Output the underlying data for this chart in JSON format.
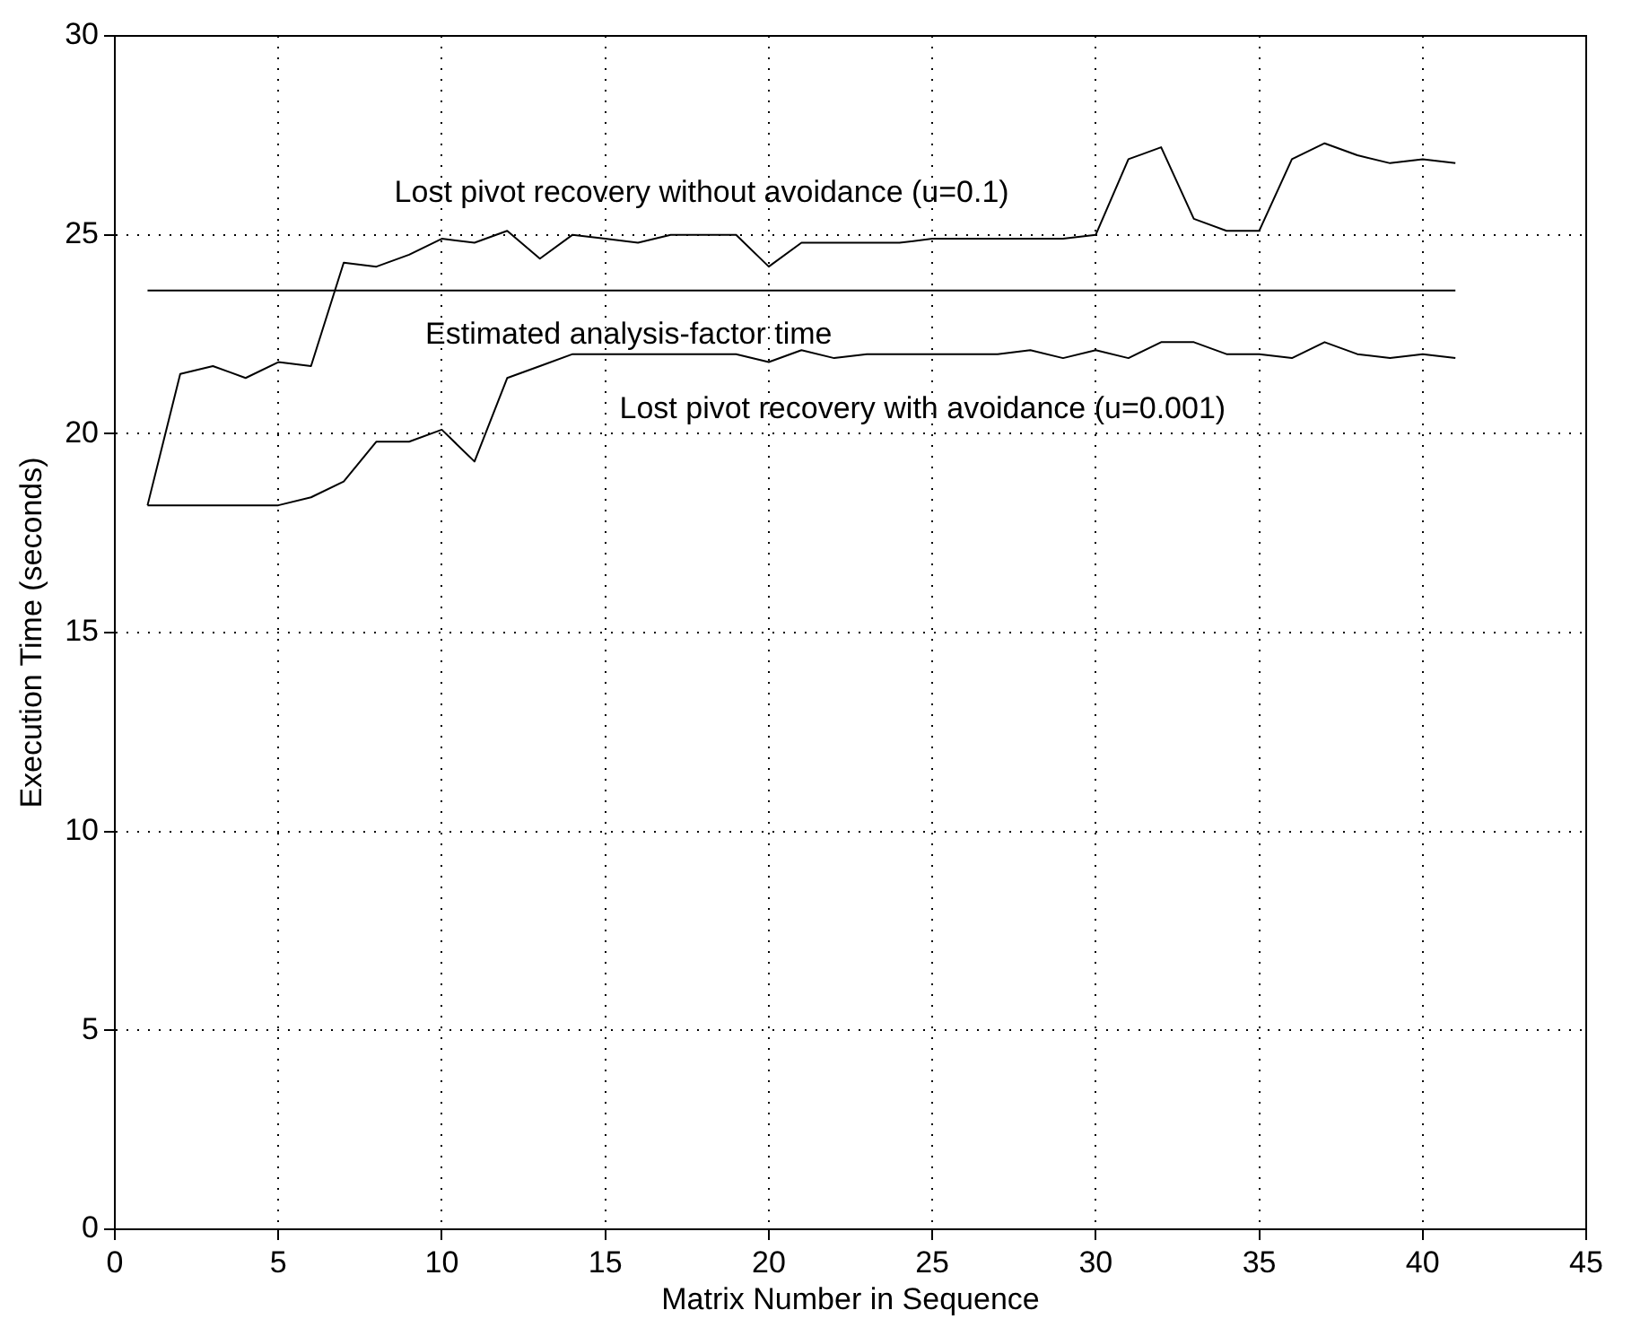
{
  "chart_data": {
    "type": "line",
    "xlabel": "Matrix Number in Sequence",
    "ylabel": "Execution Time (seconds)",
    "x": [
      1,
      2,
      3,
      4,
      5,
      6,
      7,
      8,
      9,
      10,
      11,
      12,
      13,
      14,
      15,
      16,
      17,
      18,
      19,
      20,
      21,
      22,
      23,
      24,
      25,
      26,
      27,
      28,
      29,
      30,
      31,
      32,
      33,
      34,
      35,
      36,
      37,
      38,
      39,
      40,
      41
    ],
    "series": [
      {
        "color": "#000000",
        "values": [
          18.2,
          21.5,
          21.7,
          21.4,
          21.8,
          21.7,
          24.3,
          24.2,
          24.5,
          24.9,
          24.8,
          25.1,
          24.4,
          25.0,
          24.9,
          24.8,
          25.0,
          25.0,
          25.0,
          24.2,
          24.8,
          24.8,
          24.8,
          24.8,
          24.9,
          24.9,
          24.9,
          24.9,
          24.9,
          25.0,
          26.9,
          27.2,
          25.4,
          25.1,
          25.1,
          26.9,
          27.3,
          27.0,
          26.8,
          26.9,
          26.8
        ]
      },
      {
        "color": "#000000",
        "values": [
          18.2,
          18.2,
          18.2,
          18.2,
          18.2,
          18.4,
          18.8,
          19.8,
          19.8,
          20.1,
          19.3,
          21.4,
          21.7,
          22.0,
          22.0,
          22.0,
          22.0,
          22.0,
          22.0,
          21.8,
          22.1,
          21.9,
          22.0,
          22.0,
          22.0,
          22.0,
          22.0,
          22.1,
          21.9,
          22.1,
          21.9,
          22.3,
          22.3,
          22.0,
          22.0,
          21.9,
          22.3,
          22.0,
          21.9,
          22.0,
          21.9
        ]
      },
      {
        "color": "#000000",
        "type": "line",
        "x": [
          1,
          41
        ],
        "values": [
          23.6,
          23.6
        ]
      }
    ],
    "annotations": [
      "Lost pivot recovery without avoidance (u=0.1)",
      "Estimated analysis-factor time",
      "Lost pivot recovery with avoidance (u=0.001)"
    ],
    "xlim": [
      0,
      45
    ],
    "xticks": [
      0,
      5,
      10,
      15,
      20,
      25,
      30,
      35,
      40,
      45
    ],
    "ylim": [
      0,
      30
    ],
    "yticks": [
      0,
      5,
      10,
      15,
      20,
      25,
      30
    ],
    "grid": true,
    "marker": "none",
    "line_style": "solid",
    "legend": false
  }
}
